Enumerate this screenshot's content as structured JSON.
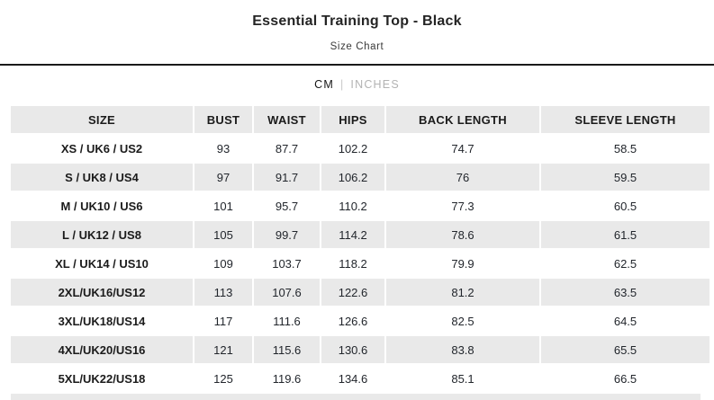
{
  "page": {
    "title": "Essential Training Top - Black",
    "subtitle": "Size Chart"
  },
  "unit_toggle": {
    "cm_label": "CM",
    "divider": "|",
    "inches_label": "INCHES",
    "active_unit": "CM"
  },
  "size_chart": {
    "columns": [
      "SIZE",
      "BUST",
      "WAIST",
      "HIPS",
      "BACK LENGTH",
      "SLEEVE LENGTH"
    ],
    "rows": [
      {
        "size": "XS / UK6 / US2",
        "bust": "93",
        "waist": "87.7",
        "hips": "102.2",
        "back_length": "74.7",
        "sleeve_length": "58.5"
      },
      {
        "size": "S / UK8 / US4",
        "bust": "97",
        "waist": "91.7",
        "hips": "106.2",
        "back_length": "76",
        "sleeve_length": "59.5"
      },
      {
        "size": "M / UK10 / US6",
        "bust": "101",
        "waist": "95.7",
        "hips": "110.2",
        "back_length": "77.3",
        "sleeve_length": "60.5"
      },
      {
        "size": "L / UK12 / US8",
        "bust": "105",
        "waist": "99.7",
        "hips": "114.2",
        "back_length": "78.6",
        "sleeve_length": "61.5"
      },
      {
        "size": "XL / UK14 / US10",
        "bust": "109",
        "waist": "103.7",
        "hips": "118.2",
        "back_length": "79.9",
        "sleeve_length": "62.5"
      },
      {
        "size": "2XL/UK16/US12",
        "bust": "113",
        "waist": "107.6",
        "hips": "122.6",
        "back_length": "81.2",
        "sleeve_length": "63.5"
      },
      {
        "size": "3XL/UK18/US14",
        "bust": "117",
        "waist": "111.6",
        "hips": "126.6",
        "back_length": "82.5",
        "sleeve_length": "64.5"
      },
      {
        "size": "4XL/UK20/US16",
        "bust": "121",
        "waist": "115.6",
        "hips": "130.6",
        "back_length": "83.8",
        "sleeve_length": "65.5"
      },
      {
        "size": "5XL/UK22/US18",
        "bust": "125",
        "waist": "119.6",
        "hips": "134.6",
        "back_length": "85.1",
        "sleeve_length": "66.5"
      }
    ]
  },
  "colors": {
    "row_alt_gray": "#e9e9e9",
    "inactive_unit_gray": "#b3b3b3",
    "text_dark": "#1c1c1c",
    "divider_rule": "#1a1a1a"
  }
}
